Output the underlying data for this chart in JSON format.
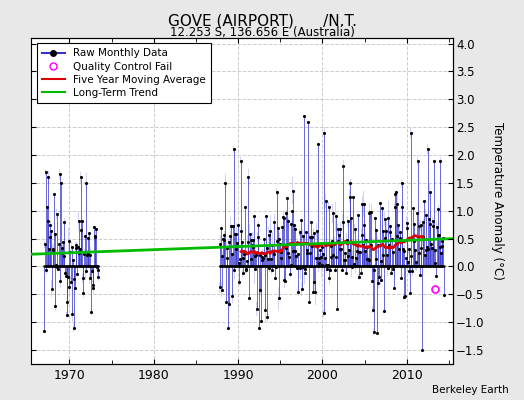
{
  "title": "GOVE (AIRPORT)      /N.T.",
  "subtitle": "12.253 S, 136.656 E (Australia)",
  "ylabel": "Temperature Anomaly (°C)",
  "credit": "Berkeley Earth",
  "xlim": [
    1965.5,
    2015.5
  ],
  "ylim": [
    -1.75,
    4.1
  ],
  "yticks": [
    -1.5,
    -1,
    -0.5,
    0,
    0.5,
    1,
    1.5,
    2,
    2.5,
    3,
    3.5,
    4
  ],
  "xticks": [
    1970,
    1980,
    1990,
    2000,
    2010
  ],
  "background_color": "#e8e8e8",
  "plot_bg_color": "#ffffff",
  "line_color": "#3333cc",
  "fill_color": "#aaaaee",
  "trend_color": "#00bb00",
  "moving_avg_color": "#dd0000",
  "dot_color": "#000000",
  "seed": 12345
}
